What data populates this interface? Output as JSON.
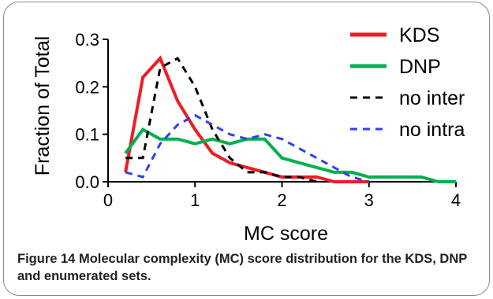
{
  "chart_data": {
    "type": "line",
    "xlabel": "MC score",
    "ylabel": "Fraction of Total",
    "xlim": [
      0,
      4
    ],
    "ylim": [
      0,
      0.3
    ],
    "xticks": [
      "0",
      "1",
      "2",
      "3",
      "4"
    ],
    "yticks": [
      "0.0",
      "0.1",
      "0.2",
      "0.3"
    ],
    "grid": false,
    "legend_position": "top-right",
    "series": [
      {
        "name": "KDS",
        "color": "#ee1c24",
        "dash": "solid",
        "x": [
          0.2,
          0.4,
          0.6,
          0.8,
          1.0,
          1.2,
          1.4,
          1.6,
          1.8,
          2.0,
          2.2,
          2.4,
          2.6,
          2.8,
          3.0
        ],
        "y": [
          0.02,
          0.22,
          0.26,
          0.17,
          0.11,
          0.06,
          0.04,
          0.03,
          0.02,
          0.01,
          0.01,
          0.01,
          0.0,
          0.0,
          0.0
        ]
      },
      {
        "name": "DNP",
        "color": "#00b050",
        "dash": "solid",
        "x": [
          0.2,
          0.4,
          0.6,
          0.8,
          1.0,
          1.2,
          1.4,
          1.6,
          1.8,
          2.0,
          2.2,
          2.4,
          2.6,
          2.8,
          3.0,
          3.2,
          3.4,
          3.6,
          3.8,
          4.0
        ],
        "y": [
          0.06,
          0.11,
          0.09,
          0.09,
          0.08,
          0.09,
          0.08,
          0.09,
          0.09,
          0.05,
          0.04,
          0.03,
          0.02,
          0.02,
          0.01,
          0.01,
          0.01,
          0.01,
          0.0,
          0.0
        ]
      },
      {
        "name": "no inter",
        "color": "#000000",
        "dash": "dashed",
        "x": [
          0.2,
          0.4,
          0.6,
          0.8,
          1.0,
          1.2,
          1.4,
          1.6,
          1.8,
          2.0,
          2.2,
          2.4
        ],
        "y": [
          0.05,
          0.05,
          0.24,
          0.26,
          0.2,
          0.11,
          0.05,
          0.02,
          0.02,
          0.01,
          0.01,
          0.0
        ]
      },
      {
        "name": "no intra",
        "color": "#2e3ff0",
        "dash": "dashed",
        "x": [
          0.2,
          0.4,
          0.6,
          0.8,
          1.0,
          1.2,
          1.4,
          1.6,
          1.8,
          2.0,
          2.2,
          2.4,
          2.6,
          2.8,
          3.0
        ],
        "y": [
          0.02,
          0.01,
          0.08,
          0.12,
          0.14,
          0.12,
          0.1,
          0.09,
          0.1,
          0.09,
          0.07,
          0.05,
          0.03,
          0.01,
          0.0
        ]
      }
    ]
  },
  "caption": {
    "label": "Figure 14",
    "text": "Molecular complexity (MC) score distribution for the KDS, DNP and enumerated sets."
  }
}
